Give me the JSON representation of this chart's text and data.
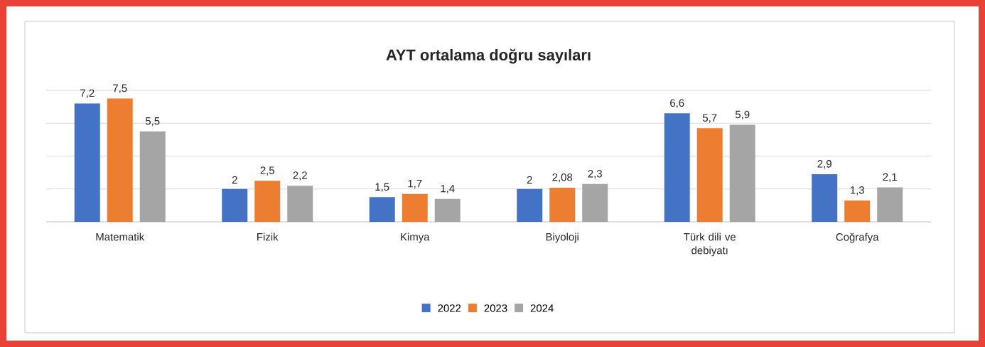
{
  "chart_data": {
    "type": "bar",
    "title": "AYT ortalama doğru sayıları",
    "categories": [
      "Matematik",
      "Fizik",
      "Kimya",
      "Biyoloji",
      "Türk dili ve debiyatı",
      "Coğrafya"
    ],
    "series": [
      {
        "name": "2022",
        "color": "#4472c4",
        "values": [
          7.2,
          2,
          1.5,
          2,
          6.6,
          2.9
        ],
        "value_labels": [
          "7,2",
          "2",
          "1,5",
          "2",
          "6,6",
          "2,9"
        ]
      },
      {
        "name": "2023",
        "color": "#ed7d31",
        "values": [
          7.5,
          2.5,
          1.7,
          2.08,
          5.7,
          1.3
        ],
        "value_labels": [
          "7,5",
          "2,5",
          "1,7",
          "2,08",
          "5,7",
          "1,3"
        ]
      },
      {
        "name": "2024",
        "color": "#a5a5a5",
        "values": [
          5.5,
          2.2,
          1.4,
          2.3,
          5.9,
          2.1
        ],
        "value_labels": [
          "5,5",
          "2,2",
          "1,4",
          "2,3",
          "5,9",
          "2,1"
        ]
      }
    ],
    "ylim": [
      0,
      8
    ],
    "yticks": [
      {
        "value": 0,
        "label": null
      },
      {
        "value": 2,
        "label": null
      },
      {
        "value": 4,
        "label": null
      },
      {
        "value": 6,
        "label": null
      },
      {
        "value": 8,
        "label": null
      }
    ],
    "tick_labels": "x",
    "grid": "y",
    "legend": "bottom"
  }
}
